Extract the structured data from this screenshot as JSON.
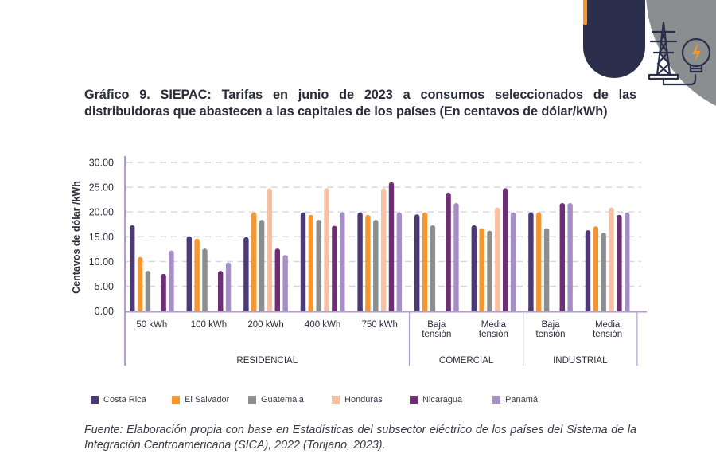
{
  "decoration": {
    "icon": "transmission-tower-lightbulb-icon",
    "colors": {
      "navy": "#2c2f4c",
      "orange": "#f5962f",
      "gray": "#8b8e8f"
    }
  },
  "title": "Gráfico 9. SIEPAC: Tarifas en junio de 2023 a consumos seleccionados de las distribuidoras que abastecen a las capitales de los países (En centavos de dólar/kWh)",
  "source": "Fuente: Elaboración propia con base en Estadísticas del subsector eléctrico de los países del Sistema de la Integración Centroamericana (SICA), 2022 (Torijano, 2023).",
  "chart_data": {
    "type": "bar",
    "title": "Gráfico 9. SIEPAC: Tarifas en junio de 2023 a consumos seleccionados de las distribuidoras que abastecen a las capitales de los países (En centavos de dólar/kWh)",
    "xlabel": "",
    "ylabel": "Centavos de dólar /kWh",
    "ylim": [
      0,
      30
    ],
    "yticks": [
      "0.00",
      "5.00",
      "10.00",
      "15.00",
      "20.00",
      "25.00",
      "30.00"
    ],
    "ytick_values": [
      0,
      5,
      10,
      15,
      20,
      25,
      30
    ],
    "grid": true,
    "legend_position": "bottom",
    "categories": [
      [
        "50 kWh"
      ],
      [
        "100 kWh"
      ],
      [
        "200 kWh"
      ],
      [
        "400 kWh"
      ],
      [
        "750 kWh"
      ],
      [
        "Baja",
        "tensión"
      ],
      [
        "Media",
        "tensión"
      ],
      [
        "Baja",
        "tensión"
      ],
      [
        "Media",
        "tensión"
      ]
    ],
    "category_groups": [
      {
        "label": "RESIDENCIAL",
        "count": 5
      },
      {
        "label": "COMERCIAL",
        "count": 2
      },
      {
        "label": "INDUSTRIAL",
        "count": 2
      }
    ],
    "axis_color": "#b49cd3",
    "grid_color": "#d9d2e9",
    "series": [
      {
        "name": "Costa Rica",
        "color": "#4b3a76",
        "values": [
          17.3,
          15.1,
          14.9,
          19.9,
          19.9,
          19.5,
          17.3,
          19.9,
          16.3
        ]
      },
      {
        "name": "El Salvador",
        "color": "#f5962f",
        "values": [
          10.9,
          14.6,
          19.9,
          19.4,
          19.4,
          19.9,
          16.7,
          19.9,
          17.1
        ]
      },
      {
        "name": "Guatemala",
        "color": "#8a8e8e",
        "values": [
          8.1,
          12.6,
          18.4,
          18.4,
          18.4,
          17.3,
          16.2,
          16.7,
          15.8
        ]
      },
      {
        "name": "Honduras",
        "color": "#f6c1a3",
        "values": [
          null,
          null,
          24.8,
          24.8,
          24.8,
          null,
          20.9,
          null,
          20.9
        ]
      },
      {
        "name": "Nicaragua",
        "color": "#6e2e74",
        "values": [
          7.5,
          8.1,
          12.6,
          17.2,
          26.0,
          23.9,
          24.8,
          21.8,
          19.4
        ]
      },
      {
        "name": "Panamá",
        "color": "#a68fc6",
        "values": [
          12.2,
          9.8,
          11.3,
          19.9,
          19.9,
          21.8,
          19.9,
          21.8,
          19.9
        ]
      }
    ]
  }
}
